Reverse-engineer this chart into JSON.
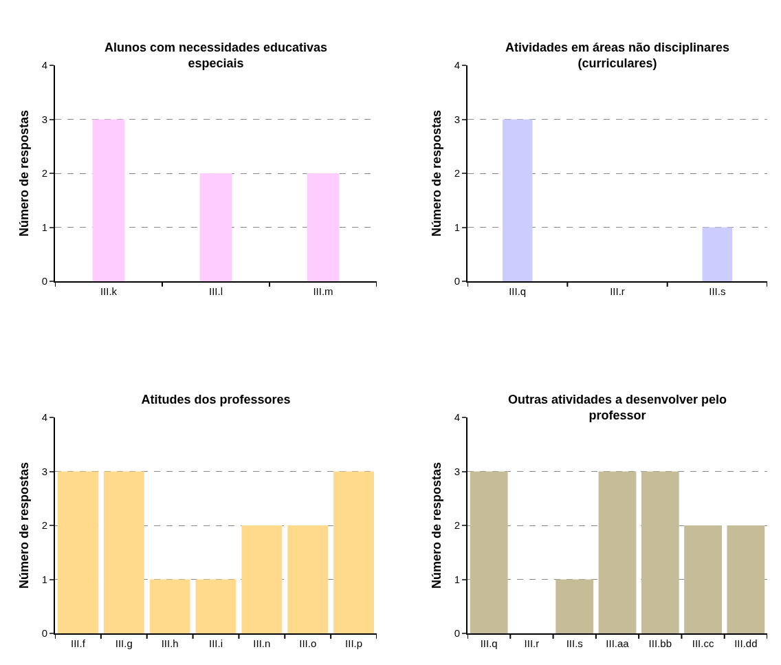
{
  "chart_data": [
    {
      "type": "bar",
      "title": "Alunos com necessidades educativas especiais",
      "ylabel": "Número de respostas",
      "categories": [
        "III.k",
        "III.l",
        "III.m"
      ],
      "values": [
        3,
        2,
        2
      ],
      "color": "#ffccff",
      "ylim": [
        0,
        4
      ],
      "yticks": [
        0,
        1,
        2,
        3,
        4
      ],
      "grid": "y"
    },
    {
      "type": "bar",
      "title": "Atividades em áreas não disciplinares (curriculares)",
      "ylabel": "Número de respostas",
      "categories": [
        "III.q",
        "III.r",
        "III.s"
      ],
      "values": [
        3,
        0,
        1
      ],
      "color": "#ccccff",
      "ylim": [
        0,
        4
      ],
      "yticks": [
        0,
        1,
        2,
        3,
        4
      ],
      "grid": "y"
    },
    {
      "type": "bar",
      "title": "Atitudes dos professores",
      "ylabel": "Número de respostas",
      "categories": [
        "III.f",
        "III.g",
        "III.h",
        "III.i",
        "III.n",
        "III.o",
        "III.p"
      ],
      "values": [
        3,
        3,
        1,
        1,
        2,
        2,
        3
      ],
      "color": "#ffd98c",
      "ylim": [
        0,
        4
      ],
      "yticks": [
        0,
        1,
        2,
        3,
        4
      ],
      "grid": "y"
    },
    {
      "type": "bar",
      "title": "Outras atividades a desenvolver pelo professor",
      "ylabel": "Número de respostas",
      "categories": [
        "III.q",
        "III.r",
        "III.s",
        "III.aa",
        "III.bb",
        "III.cc",
        "III.dd"
      ],
      "values": [
        3,
        0,
        1,
        3,
        3,
        2,
        2
      ],
      "color": "#c4bd97",
      "ylim": [
        0,
        4
      ],
      "yticks": [
        0,
        1,
        2,
        3,
        4
      ],
      "grid": "y"
    }
  ]
}
